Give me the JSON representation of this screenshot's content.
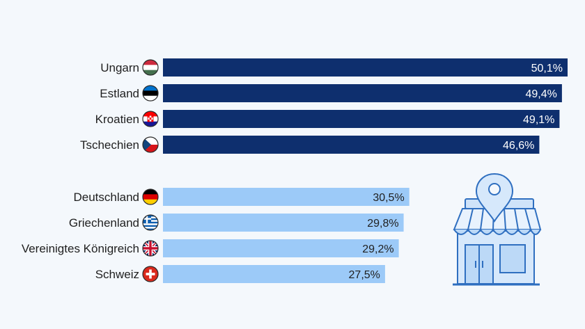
{
  "chart_data": {
    "type": "bar",
    "orientation": "horizontal",
    "groups": [
      {
        "color": "#0e2f6e",
        "label_color": "#ffffff",
        "items": [
          {
            "category": "Ungarn",
            "value": 50.1,
            "label": "50,1%",
            "flag": "hungary-flag-icon"
          },
          {
            "category": "Estland",
            "value": 49.4,
            "label": "49,4%",
            "flag": "estonia-flag-icon"
          },
          {
            "category": "Kroatien",
            "value": 49.1,
            "label": "49,1%",
            "flag": "croatia-flag-icon"
          },
          {
            "category": "Tschechien",
            "value": 46.6,
            "label": "46,6%",
            "flag": "czech-flag-icon"
          }
        ]
      },
      {
        "color": "#9ccaf8",
        "label_color": "#1f1f1f",
        "items": [
          {
            "category": "Deutschland",
            "value": 30.5,
            "label": "30,5%",
            "flag": "germany-flag-icon"
          },
          {
            "category": "Griechenland",
            "value": 29.8,
            "label": "29,8%",
            "flag": "greece-flag-icon"
          },
          {
            "category": "Vereinigtes Königreich",
            "value": 29.2,
            "label": "29,2%",
            "flag": "uk-flag-icon"
          },
          {
            "category": "Schweiz",
            "value": 27.5,
            "label": "27,5%",
            "flag": "switzerland-flag-icon"
          }
        ]
      }
    ],
    "xlim": [
      0,
      50.1
    ],
    "grid": false,
    "illustration": "store-location-icon"
  }
}
